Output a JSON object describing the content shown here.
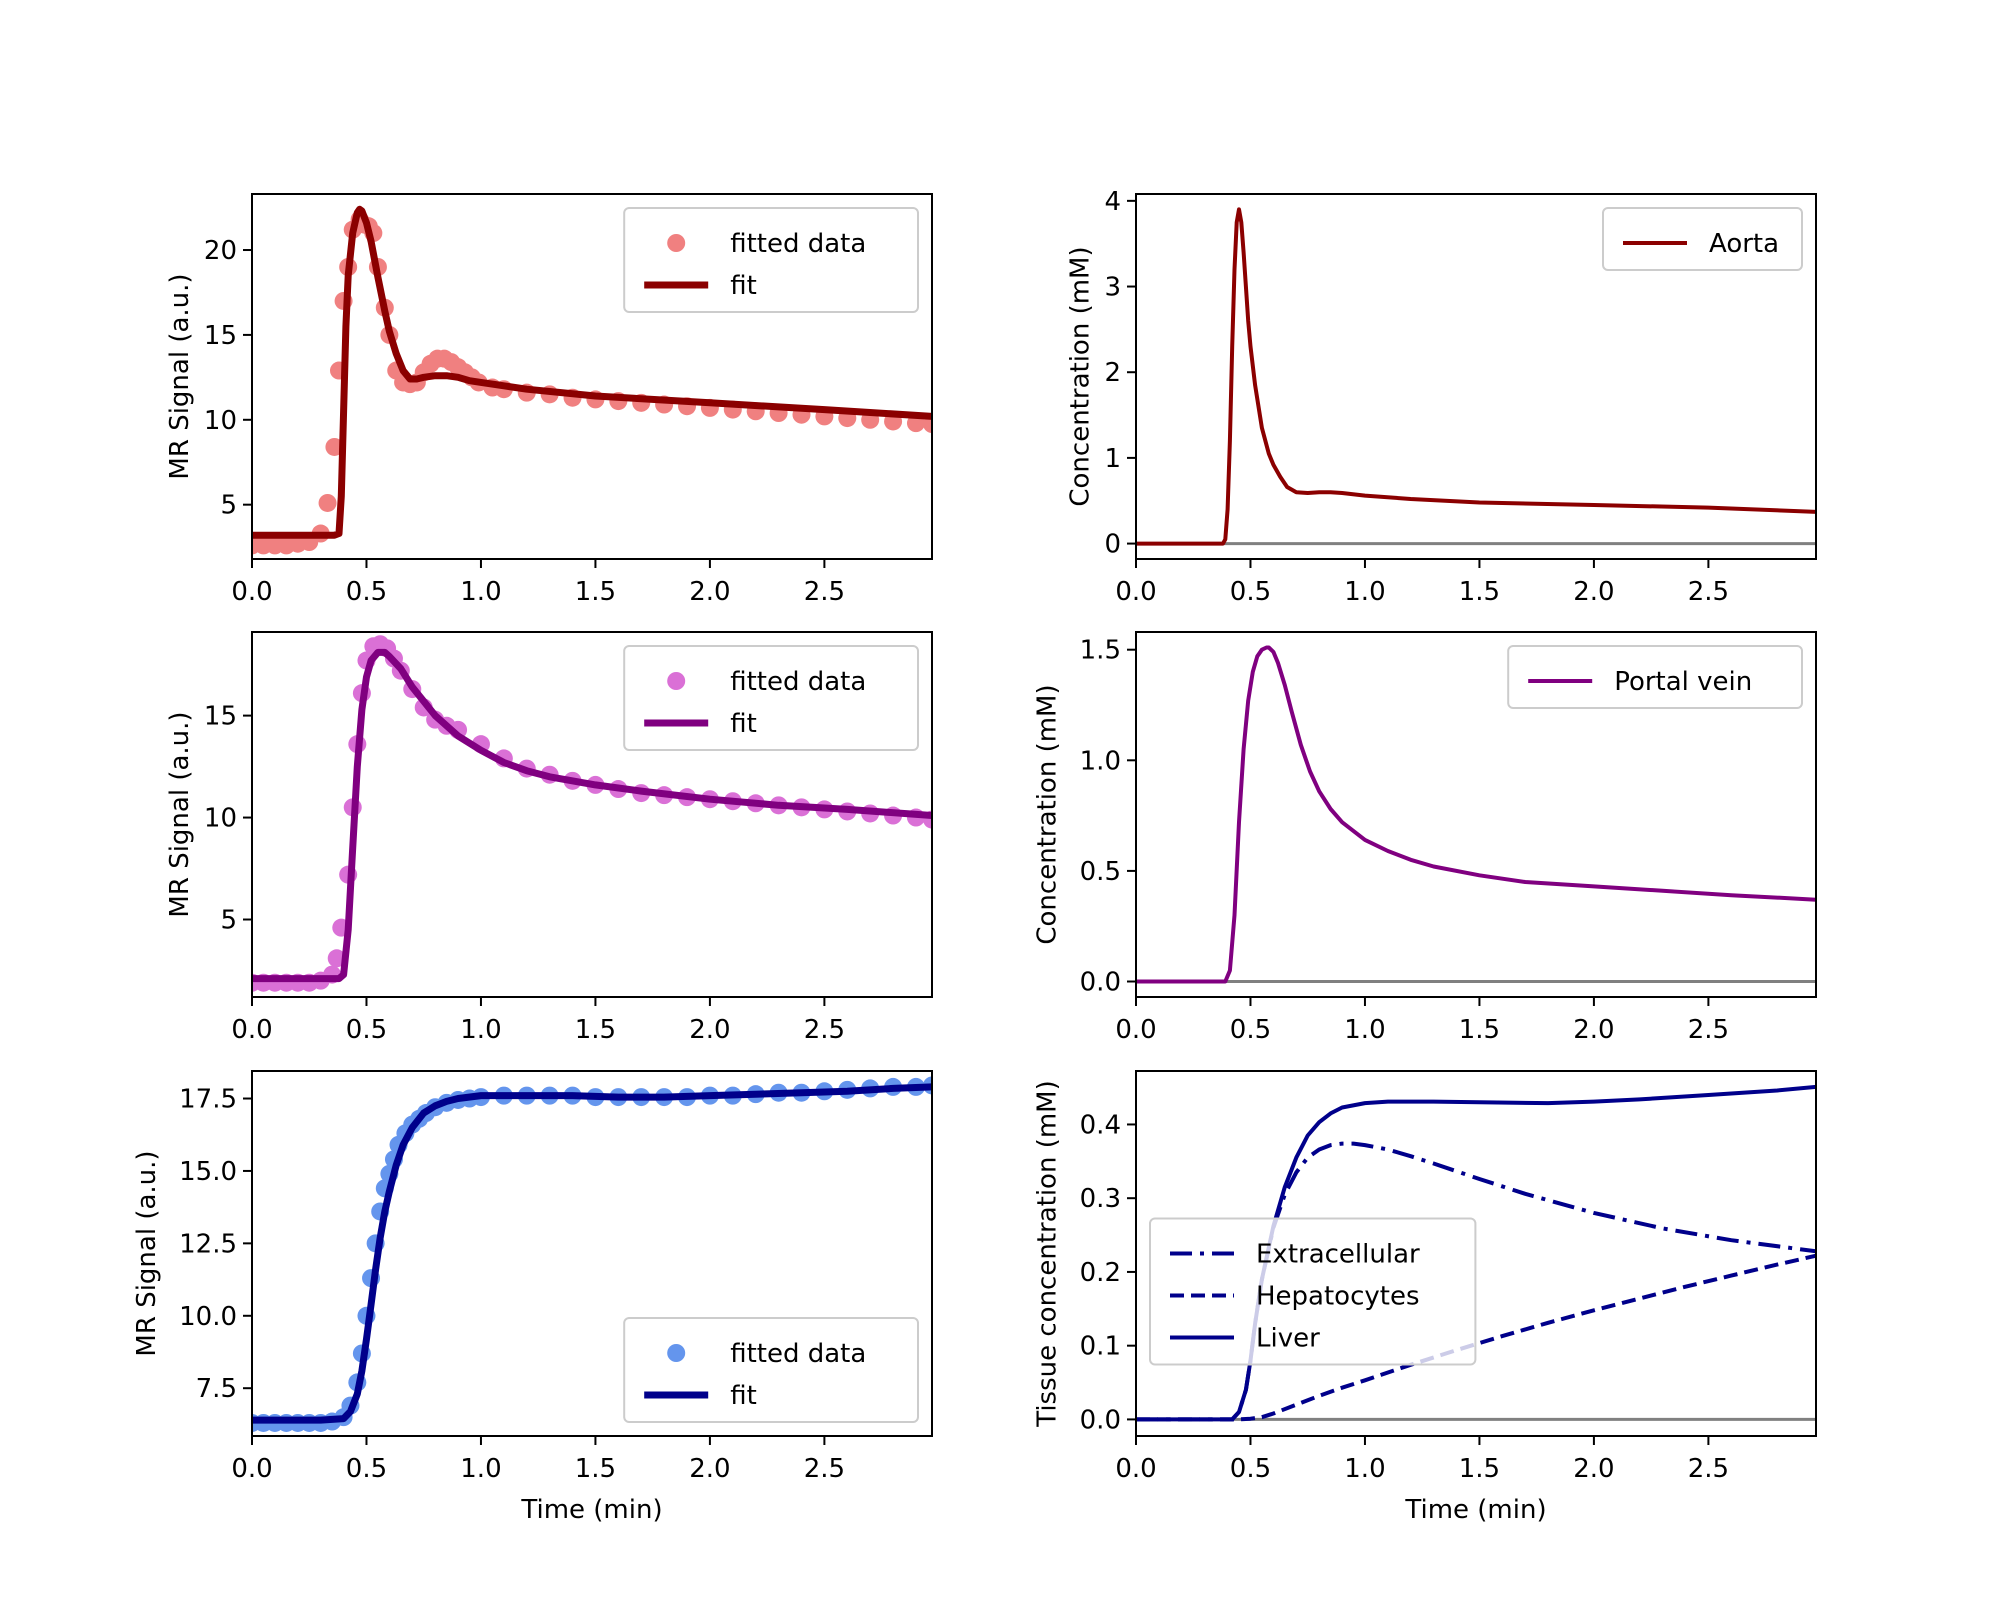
{
  "figure": {
    "background": "#ffffff"
  },
  "chart_data": [
    {
      "type": "scatter",
      "panel": "top-left",
      "xlabel": "",
      "ylabel": "MR Signal (a.u.)",
      "xlim": [
        0,
        2.97
      ],
      "ylim": [
        1.8,
        23.3
      ],
      "xticks": [
        0.0,
        0.5,
        1.0,
        1.5,
        2.0,
        2.5
      ],
      "xtick_labels": [
        "0.0",
        "0.5",
        "1.0",
        "1.5",
        "2.0",
        "2.5"
      ],
      "yticks": [
        5,
        10,
        15,
        20
      ],
      "ytick_labels": [
        "5",
        "10",
        "15",
        "20"
      ],
      "legend": {
        "position": "top-right",
        "entries": [
          "fitted data",
          "fit"
        ]
      },
      "series": [
        {
          "name": "fitted data",
          "kind": "points",
          "color": "#f08080",
          "x": [
            0.0,
            0.05,
            0.1,
            0.15,
            0.2,
            0.25,
            0.3,
            0.33,
            0.36,
            0.38,
            0.4,
            0.42,
            0.44,
            0.47,
            0.49,
            0.51,
            0.53,
            0.55,
            0.58,
            0.6,
            0.63,
            0.66,
            0.69,
            0.72,
            0.75,
            0.78,
            0.81,
            0.84,
            0.87,
            0.9,
            0.93,
            0.96,
            0.99,
            1.05,
            1.1,
            1.2,
            1.3,
            1.4,
            1.5,
            1.6,
            1.7,
            1.8,
            1.9,
            2.0,
            2.1,
            2.2,
            2.3,
            2.4,
            2.5,
            2.6,
            2.7,
            2.8,
            2.9,
            2.97
          ],
          "y": [
            2.6,
            2.6,
            2.6,
            2.6,
            2.7,
            2.8,
            3.3,
            5.1,
            8.4,
            12.9,
            17.0,
            19.0,
            21.2,
            21.8,
            21.5,
            21.4,
            21.0,
            19.0,
            16.6,
            15.0,
            12.9,
            12.2,
            12.1,
            12.2,
            12.8,
            13.3,
            13.6,
            13.6,
            13.4,
            13.1,
            12.8,
            12.5,
            12.2,
            11.9,
            11.8,
            11.6,
            11.5,
            11.3,
            11.2,
            11.1,
            11.0,
            10.9,
            10.8,
            10.7,
            10.6,
            10.5,
            10.4,
            10.3,
            10.2,
            10.1,
            10.0,
            9.9,
            9.8,
            9.75
          ]
        },
        {
          "name": "fit",
          "kind": "line",
          "color": "#8b0000",
          "x": [
            0.0,
            0.36,
            0.38,
            0.39,
            0.4,
            0.41,
            0.42,
            0.44,
            0.46,
            0.47,
            0.48,
            0.5,
            0.52,
            0.55,
            0.58,
            0.6,
            0.63,
            0.66,
            0.69,
            0.72,
            0.75,
            0.8,
            0.85,
            0.9,
            0.95,
            1.0,
            1.1,
            1.2,
            1.5,
            2.0,
            2.5,
            2.97
          ],
          "y": [
            3.2,
            3.2,
            3.3,
            5.5,
            10.5,
            15.5,
            18.5,
            21.0,
            22.2,
            22.4,
            22.3,
            21.6,
            20.5,
            18.4,
            16.4,
            15.2,
            13.9,
            12.9,
            12.4,
            12.4,
            12.5,
            12.6,
            12.6,
            12.5,
            12.3,
            12.2,
            12.0,
            11.8,
            11.4,
            11.0,
            10.6,
            10.2
          ]
        }
      ]
    },
    {
      "type": "line",
      "panel": "top-right",
      "xlabel": "",
      "ylabel": "Concentration (mM)",
      "xlim": [
        0,
        2.97
      ],
      "ylim": [
        -0.18,
        4.08
      ],
      "xticks": [
        0.0,
        0.5,
        1.0,
        1.5,
        2.0,
        2.5
      ],
      "xtick_labels": [
        "0.0",
        "0.5",
        "1.0",
        "1.5",
        "2.0",
        "2.5"
      ],
      "yticks": [
        0,
        1,
        2,
        3,
        4
      ],
      "ytick_labels": [
        "0",
        "1",
        "2",
        "3",
        "4"
      ],
      "baseline": {
        "y": 0,
        "color": "#808080"
      },
      "legend": {
        "position": "top-right",
        "entries": [
          "Aorta"
        ]
      },
      "series": [
        {
          "name": "Aorta",
          "kind": "line",
          "color": "#8b0000",
          "x": [
            0.0,
            0.38,
            0.39,
            0.4,
            0.41,
            0.42,
            0.43,
            0.44,
            0.45,
            0.46,
            0.47,
            0.48,
            0.49,
            0.5,
            0.52,
            0.55,
            0.58,
            0.6,
            0.63,
            0.66,
            0.7,
            0.75,
            0.8,
            0.85,
            0.9,
            1.0,
            1.2,
            1.5,
            2.0,
            2.5,
            2.97
          ],
          "y": [
            0.0,
            0.0,
            0.05,
            0.4,
            1.2,
            2.3,
            3.2,
            3.75,
            3.9,
            3.75,
            3.4,
            3.0,
            2.6,
            2.3,
            1.85,
            1.35,
            1.05,
            0.92,
            0.78,
            0.66,
            0.6,
            0.59,
            0.6,
            0.6,
            0.59,
            0.56,
            0.52,
            0.48,
            0.45,
            0.42,
            0.37
          ]
        }
      ]
    },
    {
      "type": "scatter",
      "panel": "middle-left",
      "xlabel": "",
      "ylabel": "MR Signal (a.u.)",
      "xlim": [
        0,
        2.97
      ],
      "ylim": [
        1.2,
        19.1
      ],
      "xticks": [
        0.0,
        0.5,
        1.0,
        1.5,
        2.0,
        2.5
      ],
      "xtick_labels": [
        "0.0",
        "0.5",
        "1.0",
        "1.5",
        "2.0",
        "2.5"
      ],
      "yticks": [
        5,
        10,
        15
      ],
      "ytick_labels": [
        "5",
        "10",
        "15"
      ],
      "legend": {
        "position": "top-right",
        "entries": [
          "fitted data",
          "fit"
        ]
      },
      "series": [
        {
          "name": "fitted data",
          "kind": "points",
          "color": "#da70d6",
          "x": [
            0.0,
            0.05,
            0.1,
            0.15,
            0.2,
            0.25,
            0.3,
            0.35,
            0.37,
            0.39,
            0.42,
            0.44,
            0.46,
            0.48,
            0.5,
            0.53,
            0.56,
            0.59,
            0.62,
            0.65,
            0.7,
            0.75,
            0.8,
            0.85,
            0.9,
            1.0,
            1.1,
            1.2,
            1.3,
            1.4,
            1.5,
            1.6,
            1.7,
            1.8,
            1.9,
            2.0,
            2.1,
            2.2,
            2.3,
            2.4,
            2.5,
            2.6,
            2.7,
            2.8,
            2.9,
            2.97
          ],
          "y": [
            1.9,
            1.9,
            1.9,
            1.9,
            1.9,
            1.9,
            2.0,
            2.3,
            3.1,
            4.6,
            7.2,
            10.5,
            13.6,
            16.1,
            17.7,
            18.4,
            18.5,
            18.3,
            17.8,
            17.2,
            16.3,
            15.4,
            14.8,
            14.5,
            14.3,
            13.6,
            12.9,
            12.4,
            12.1,
            11.8,
            11.6,
            11.4,
            11.2,
            11.1,
            11.0,
            10.9,
            10.8,
            10.7,
            10.6,
            10.5,
            10.4,
            10.3,
            10.2,
            10.1,
            10.0,
            9.9
          ]
        },
        {
          "name": "fit",
          "kind": "line",
          "color": "#800080",
          "x": [
            0.0,
            0.38,
            0.4,
            0.42,
            0.44,
            0.46,
            0.48,
            0.5,
            0.52,
            0.55,
            0.58,
            0.6,
            0.65,
            0.7,
            0.8,
            0.9,
            1.0,
            1.1,
            1.2,
            1.3,
            1.5,
            1.7,
            2.0,
            2.3,
            2.6,
            2.97
          ],
          "y": [
            2.1,
            2.1,
            2.3,
            4.5,
            8.5,
            12.5,
            15.3,
            16.9,
            17.7,
            18.1,
            18.1,
            17.9,
            17.3,
            16.4,
            15.0,
            14.0,
            13.3,
            12.7,
            12.3,
            12.0,
            11.6,
            11.3,
            10.9,
            10.6,
            10.4,
            10.1
          ]
        }
      ]
    },
    {
      "type": "line",
      "panel": "middle-right",
      "xlabel": "",
      "ylabel": "Concentration (mM)",
      "xlim": [
        0,
        2.97
      ],
      "ylim": [
        -0.07,
        1.58
      ],
      "xticks": [
        0.0,
        0.5,
        1.0,
        1.5,
        2.0,
        2.5
      ],
      "xtick_labels": [
        "0.0",
        "0.5",
        "1.0",
        "1.5",
        "2.0",
        "2.5"
      ],
      "yticks": [
        0.0,
        0.5,
        1.0,
        1.5
      ],
      "ytick_labels": [
        "0.0",
        "0.5",
        "1.0",
        "1.5"
      ],
      "baseline": {
        "y": 0,
        "color": "#808080"
      },
      "legend": {
        "position": "top-right",
        "entries": [
          "Portal vein"
        ]
      },
      "series": [
        {
          "name": "Portal vein",
          "kind": "line",
          "color": "#800080",
          "x": [
            0.0,
            0.39,
            0.41,
            0.43,
            0.45,
            0.47,
            0.49,
            0.51,
            0.53,
            0.55,
            0.57,
            0.58,
            0.6,
            0.62,
            0.65,
            0.68,
            0.72,
            0.76,
            0.8,
            0.85,
            0.9,
            1.0,
            1.1,
            1.2,
            1.3,
            1.5,
            1.7,
            2.0,
            2.3,
            2.6,
            2.97
          ],
          "y": [
            0.0,
            0.0,
            0.05,
            0.3,
            0.72,
            1.05,
            1.27,
            1.4,
            1.47,
            1.5,
            1.51,
            1.51,
            1.49,
            1.44,
            1.34,
            1.22,
            1.07,
            0.95,
            0.86,
            0.78,
            0.72,
            0.64,
            0.59,
            0.55,
            0.52,
            0.48,
            0.45,
            0.43,
            0.41,
            0.39,
            0.37
          ]
        }
      ]
    },
    {
      "type": "scatter",
      "panel": "bottom-left",
      "xlabel": "Time (min)",
      "ylabel": "MR Signal (a.u.)",
      "xlim": [
        0,
        2.97
      ],
      "ylim": [
        5.85,
        18.45
      ],
      "xticks": [
        0.0,
        0.5,
        1.0,
        1.5,
        2.0,
        2.5
      ],
      "xtick_labels": [
        "0.0",
        "0.5",
        "1.0",
        "1.5",
        "2.0",
        "2.5"
      ],
      "yticks": [
        7.5,
        10.0,
        12.5,
        15.0,
        17.5
      ],
      "ytick_labels": [
        "7.5",
        "10.0",
        "12.5",
        "15.0",
        "17.5"
      ],
      "legend": {
        "position": "bottom-right",
        "entries": [
          "fitted data",
          "fit"
        ]
      },
      "series": [
        {
          "name": "fitted data",
          "kind": "points",
          "color": "#6495ed",
          "x": [
            0.0,
            0.05,
            0.1,
            0.15,
            0.2,
            0.25,
            0.3,
            0.35,
            0.4,
            0.43,
            0.46,
            0.48,
            0.5,
            0.52,
            0.54,
            0.56,
            0.58,
            0.6,
            0.62,
            0.64,
            0.67,
            0.7,
            0.73,
            0.76,
            0.8,
            0.85,
            0.9,
            0.95,
            1.0,
            1.1,
            1.2,
            1.3,
            1.4,
            1.5,
            1.6,
            1.7,
            1.8,
            1.9,
            2.0,
            2.1,
            2.2,
            2.3,
            2.4,
            2.5,
            2.6,
            2.7,
            2.8,
            2.9,
            2.97
          ],
          "y": [
            6.3,
            6.3,
            6.3,
            6.3,
            6.3,
            6.3,
            6.3,
            6.35,
            6.5,
            6.9,
            7.7,
            8.7,
            10.0,
            11.3,
            12.5,
            13.6,
            14.4,
            14.9,
            15.4,
            15.9,
            16.3,
            16.6,
            16.8,
            17.0,
            17.2,
            17.35,
            17.45,
            17.5,
            17.55,
            17.6,
            17.6,
            17.6,
            17.6,
            17.55,
            17.55,
            17.55,
            17.55,
            17.55,
            17.6,
            17.6,
            17.65,
            17.7,
            17.7,
            17.75,
            17.8,
            17.85,
            17.9,
            17.9,
            17.95
          ]
        },
        {
          "name": "fit",
          "kind": "line",
          "color": "#00008b",
          "x": [
            0.0,
            0.3,
            0.4,
            0.43,
            0.46,
            0.48,
            0.5,
            0.52,
            0.54,
            0.56,
            0.58,
            0.6,
            0.63,
            0.66,
            0.7,
            0.75,
            0.8,
            0.85,
            0.9,
            1.0,
            1.1,
            1.2,
            1.4,
            1.6,
            1.8,
            2.0,
            2.2,
            2.4,
            2.6,
            2.8,
            2.97
          ],
          "y": [
            6.4,
            6.4,
            6.45,
            6.7,
            7.3,
            8.1,
            9.2,
            10.4,
            11.6,
            12.7,
            13.6,
            14.3,
            15.2,
            15.9,
            16.5,
            17.0,
            17.25,
            17.4,
            17.5,
            17.6,
            17.6,
            17.6,
            17.6,
            17.55,
            17.55,
            17.6,
            17.65,
            17.7,
            17.75,
            17.85,
            17.9
          ]
        }
      ]
    },
    {
      "type": "line",
      "panel": "bottom-right",
      "xlabel": "Time (min)",
      "ylabel": "Tissue concentration (mM)",
      "xlim": [
        0,
        2.97
      ],
      "ylim": [
        -0.0225,
        0.4725
      ],
      "xticks": [
        0.0,
        0.5,
        1.0,
        1.5,
        2.0,
        2.5
      ],
      "xtick_labels": [
        "0.0",
        "0.5",
        "1.0",
        "1.5",
        "2.0",
        "2.5"
      ],
      "yticks": [
        0.0,
        0.1,
        0.2,
        0.3,
        0.4
      ],
      "ytick_labels": [
        "0.0",
        "0.1",
        "0.2",
        "0.3",
        "0.4"
      ],
      "baseline": {
        "y": 0,
        "color": "#808080"
      },
      "legend": {
        "position": "center-left",
        "entries": [
          "Extracellular",
          "Hepatocytes",
          "Liver"
        ]
      },
      "series": [
        {
          "name": "Extracellular",
          "kind": "line",
          "style": "dashdot",
          "color": "#00008b",
          "x": [
            0.0,
            0.42,
            0.45,
            0.48,
            0.5,
            0.52,
            0.55,
            0.6,
            0.65,
            0.7,
            0.75,
            0.8,
            0.85,
            0.9,
            0.95,
            1.0,
            1.1,
            1.2,
            1.3,
            1.5,
            1.7,
            2.0,
            2.3,
            2.6,
            2.97
          ],
          "y": [
            0.0,
            0.0,
            0.01,
            0.04,
            0.08,
            0.13,
            0.19,
            0.26,
            0.305,
            0.335,
            0.355,
            0.366,
            0.372,
            0.374,
            0.374,
            0.372,
            0.366,
            0.357,
            0.347,
            0.326,
            0.306,
            0.28,
            0.259,
            0.243,
            0.228
          ]
        },
        {
          "name": "Hepatocytes",
          "kind": "line",
          "style": "dashed",
          "color": "#00008b",
          "x": [
            0.0,
            0.45,
            0.5,
            0.55,
            0.6,
            0.7,
            0.8,
            0.9,
            1.0,
            1.2,
            1.4,
            1.6,
            1.8,
            2.0,
            2.2,
            2.4,
            2.6,
            2.8,
            2.97
          ],
          "y": [
            0.0,
            0.0,
            0.001,
            0.003,
            0.008,
            0.02,
            0.032,
            0.043,
            0.053,
            0.074,
            0.094,
            0.113,
            0.131,
            0.148,
            0.164,
            0.18,
            0.195,
            0.21,
            0.222
          ]
        },
        {
          "name": "Liver",
          "kind": "line",
          "style": "solid",
          "color": "#00008b",
          "x": [
            0.0,
            0.42,
            0.45,
            0.48,
            0.5,
            0.52,
            0.55,
            0.6,
            0.65,
            0.7,
            0.75,
            0.8,
            0.85,
            0.9,
            1.0,
            1.1,
            1.2,
            1.3,
            1.5,
            1.8,
            2.0,
            2.2,
            2.5,
            2.8,
            2.97
          ],
          "y": [
            0.0,
            0.0,
            0.01,
            0.04,
            0.08,
            0.13,
            0.19,
            0.262,
            0.315,
            0.355,
            0.385,
            0.403,
            0.415,
            0.423,
            0.429,
            0.431,
            0.431,
            0.431,
            0.43,
            0.429,
            0.431,
            0.434,
            0.44,
            0.446,
            0.451
          ]
        }
      ]
    }
  ]
}
